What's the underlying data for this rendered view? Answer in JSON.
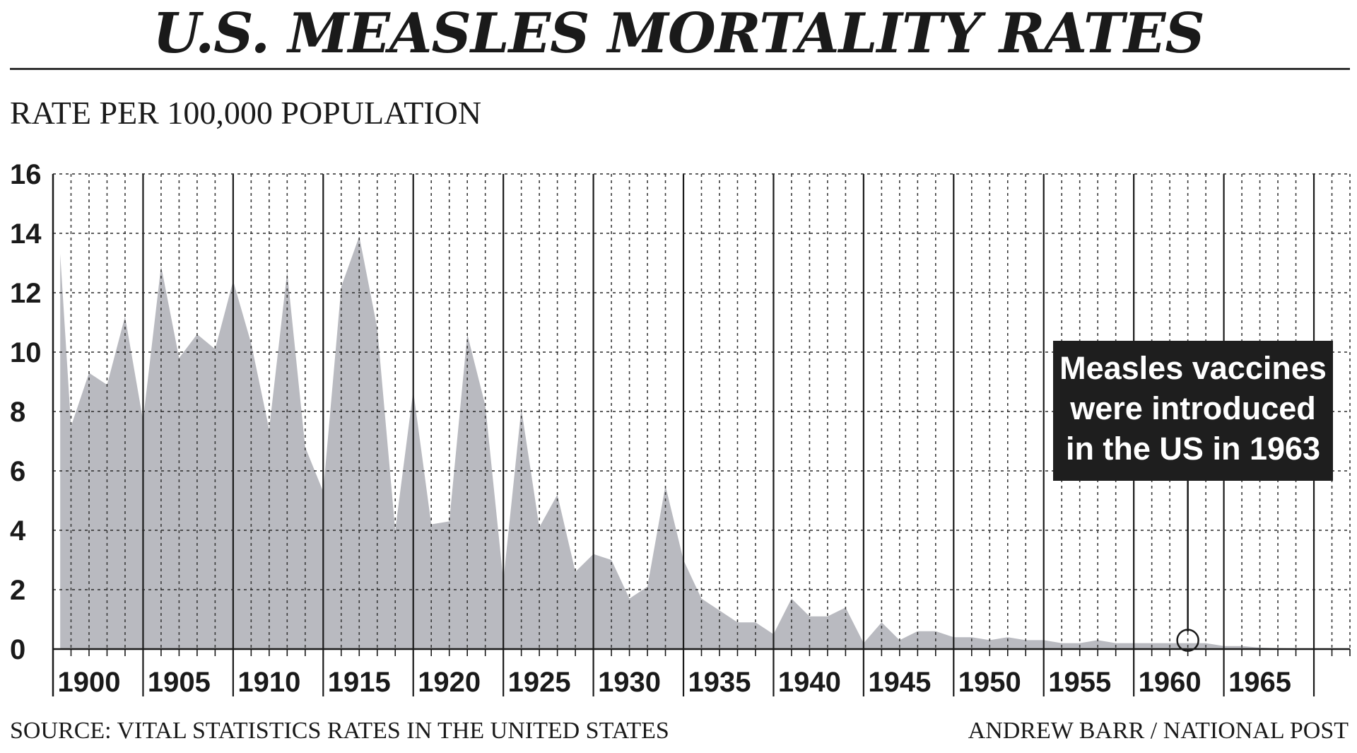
{
  "chart_data": {
    "type": "area",
    "title": "U.S. MEASLES MORTALITY RATES",
    "ylabel": "RATE PER 100,000 POPULATION",
    "xlabel": "",
    "ylim": [
      0,
      16
    ],
    "xlim": [
      1898,
      1970
    ],
    "yticks": [
      0,
      2,
      4,
      6,
      8,
      10,
      12,
      14,
      16
    ],
    "xticks": [
      1900,
      1905,
      1910,
      1915,
      1920,
      1925,
      1930,
      1935,
      1940,
      1945,
      1950,
      1955,
      1960,
      1965
    ],
    "grid": true,
    "series": [
      {
        "x": [
          1898.4,
          1899,
          1900,
          1901,
          1902,
          1903,
          1904,
          1905,
          1906,
          1907,
          1908,
          1909,
          1910,
          1911,
          1912,
          1913,
          1914,
          1915,
          1916,
          1917,
          1918,
          1919,
          1920,
          1921,
          1922,
          1923,
          1924,
          1925,
          1926,
          1927,
          1928,
          1929,
          1930,
          1931,
          1932,
          1933,
          1934,
          1935,
          1936,
          1937,
          1938,
          1939,
          1940,
          1941,
          1942,
          1943,
          1944,
          1945,
          1946,
          1947,
          1948,
          1949,
          1950,
          1951,
          1952,
          1953,
          1954,
          1955,
          1956,
          1957,
          1958,
          1959,
          1960,
          1961,
          1962,
          1963,
          1964,
          1965,
          1966,
          1967,
          1968
        ],
        "values": [
          13.3,
          7.5,
          9.3,
          8.9,
          11.2,
          7.7,
          12.9,
          9.8,
          10.6,
          10.1,
          12.4,
          10.3,
          7.4,
          12.7,
          6.8,
          5.3,
          12.2,
          13.9,
          10.8,
          4.0,
          8.7,
          4.2,
          4.3,
          10.6,
          8.2,
          2.3,
          8.1,
          4.1,
          5.2,
          2.6,
          3.2,
          3.0,
          1.7,
          2.1,
          5.5,
          3.0,
          1.7,
          1.3,
          0.9,
          0.9,
          0.5,
          1.7,
          1.1,
          1.1,
          1.4,
          0.2,
          0.9,
          0.3,
          0.6,
          0.6,
          0.4,
          0.4,
          0.3,
          0.4,
          0.3,
          0.3,
          0.2,
          0.2,
          0.3,
          0.2,
          0.2,
          0.2,
          0.2,
          0.2,
          0.2,
          0.1,
          0.1,
          0.05,
          0.03,
          0.02,
          0.01
        ],
        "color": "#b9bac0"
      }
    ],
    "annotation": {
      "lines": [
        "Measles vaccines",
        "were introduced",
        "in the US in 1963"
      ],
      "marker_x": 1961,
      "marker_y": 0.2
    }
  },
  "source": "SOURCE: VITAL STATISTICS RATES IN THE UNITED STATES",
  "credit": "ANDREW BARR / NATIONAL POST"
}
